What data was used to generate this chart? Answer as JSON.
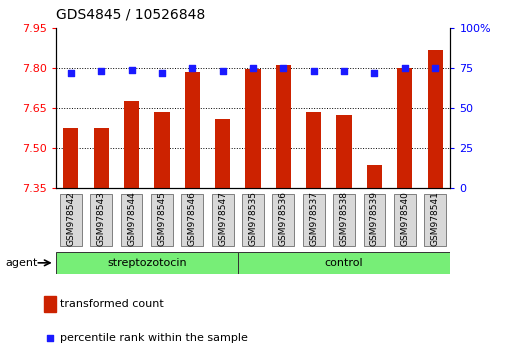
{
  "title": "GDS4845 / 10526848",
  "samples": [
    "GSM978542",
    "GSM978543",
    "GSM978544",
    "GSM978545",
    "GSM978546",
    "GSM978547",
    "GSM978535",
    "GSM978536",
    "GSM978537",
    "GSM978538",
    "GSM978539",
    "GSM978540",
    "GSM978541"
  ],
  "groups": [
    "streptozotocin",
    "streptozotocin",
    "streptozotocin",
    "streptozotocin",
    "streptozotocin",
    "streptozotocin",
    "control",
    "control",
    "control",
    "control",
    "control",
    "control",
    "control"
  ],
  "transformed_count": [
    7.575,
    7.575,
    7.675,
    7.635,
    7.785,
    7.61,
    7.795,
    7.81,
    7.635,
    7.625,
    7.435,
    7.8,
    7.87
  ],
  "percentile_rank": [
    72,
    73,
    74,
    72,
    75,
    73,
    75,
    75,
    73,
    73,
    72,
    75,
    75
  ],
  "ylim_left": [
    7.35,
    7.95
  ],
  "ylim_right": [
    0,
    100
  ],
  "yticks_left": [
    7.35,
    7.5,
    7.65,
    7.8,
    7.95
  ],
  "yticks_right": [
    0,
    25,
    50,
    75,
    100
  ],
  "bar_color": "#cc2200",
  "dot_color": "#1a1aff",
  "group_color": "#77ee77",
  "agent_label": "agent",
  "legend_bar": "transformed count",
  "legend_dot": "percentile rank within the sample",
  "bar_width": 0.5,
  "grid_color": "#000000",
  "bg_color": "#ffffff",
  "tick_label_size": 7,
  "title_fontsize": 10,
  "streptozotocin_count": 6,
  "control_count": 7
}
